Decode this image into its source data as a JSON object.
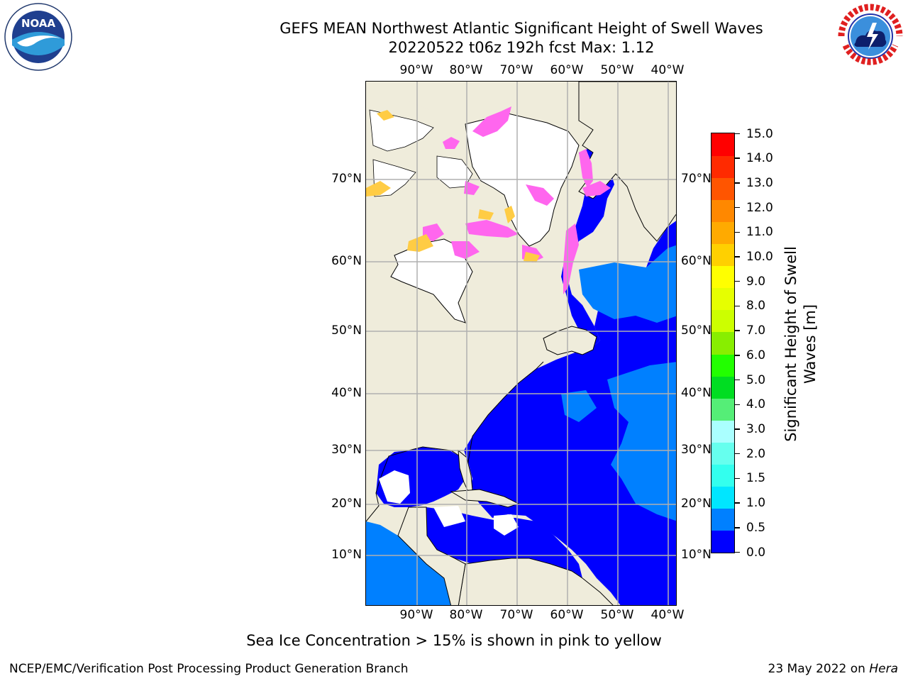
{
  "title": {
    "line1": "GEFS MEAN Northwest Atlantic Significant Height of Swell Waves",
    "line2": "20220522 t06z 192h fcst   Max: 1.12"
  },
  "logos": {
    "left": {
      "name": "NOAA",
      "ring_text": "NATIONAL OCEANIC AND ATMOSPHERIC ADMINISTRATION · U.S. DEPARTMENT OF COMMERCE"
    },
    "right": {
      "name": "NATIONAL WEATHER SERVICE"
    }
  },
  "map": {
    "lon_ticks": [
      "90°W",
      "80°W",
      "70°W",
      "60°W",
      "50°W",
      "40°W"
    ],
    "lat_ticks": [
      "10°N",
      "20°N",
      "30°N",
      "40°N",
      "50°N",
      "60°N",
      "70°N"
    ],
    "colors": {
      "land": "#efecdb",
      "ocean_low": "#0000ff",
      "ocean_mid": "#0080ff",
      "ice_pink": "#ff66ee",
      "ice_yellow": "#ffcc44",
      "grid": "#b0b0b0"
    }
  },
  "colorbar": {
    "title": "Significant Height of Swell Waves [m]",
    "title_line1": "Significant Height of Swell",
    "title_line2": "Waves [m]",
    "labels": [
      "15.0",
      "14.0",
      "13.0",
      "12.0",
      "11.0",
      "10.0",
      "9.0",
      "8.0",
      "7.0",
      "6.0",
      "5.0",
      "4.0",
      "3.0",
      "2.0",
      "1.5",
      "1.0",
      "0.5",
      "0.0"
    ],
    "colors": [
      "#0000ff",
      "#0080ff",
      "#00e6ff",
      "#33ffee",
      "#66ffee",
      "#aaffff",
      "#55ee77",
      "#00dd22",
      "#22ff00",
      "#88ee00",
      "#ccff00",
      "#e6ff00",
      "#ffff00",
      "#ffd000",
      "#ffaa00",
      "#ff8800",
      "#ff5500",
      "#ff2a00",
      "#ff0000"
    ]
  },
  "note": "Sea Ice Concentration > 15% is shown in pink to yellow",
  "footer": {
    "left": "NCEP/EMC/Verification Post Processing Product Generation Branch",
    "right_prefix": "23 May 2022 on ",
    "right_host": "Hera"
  }
}
